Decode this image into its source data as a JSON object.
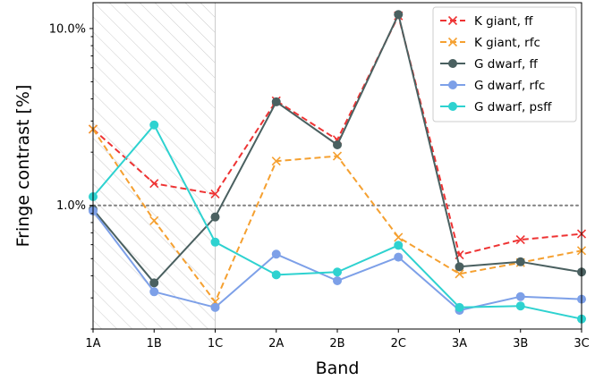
{
  "chart_data": {
    "type": "line",
    "xlabel": "Band",
    "ylabel": "Fringe contrast [%]",
    "yscale": "log",
    "ylim": [
      0.2,
      14
    ],
    "categories": [
      "1A",
      "1B",
      "1C",
      "2A",
      "2B",
      "2C",
      "3A",
      "3B",
      "3C"
    ],
    "yticks": [
      {
        "value": 1.0,
        "label": "1.0%"
      },
      {
        "value": 10.0,
        "label": "10.0%"
      }
    ],
    "reference_line": {
      "value": 1.0,
      "color": "#808080",
      "style": "dotted"
    },
    "shaded_region": {
      "from": "1A",
      "to": "1C",
      "pattern": "hatched"
    },
    "legend": {
      "position": "top-right"
    },
    "series": [
      {
        "name": "K giant, ff",
        "color": "#ee3333",
        "dashed": true,
        "marker": "x",
        "values": [
          2.7,
          1.33,
          1.16,
          3.9,
          2.35,
          11.8,
          0.525,
          0.64,
          0.69
        ]
      },
      {
        "name": "K giant, rfc",
        "color": "#f5a030",
        "dashed": true,
        "marker": "x",
        "values": [
          2.7,
          0.82,
          0.285,
          1.78,
          1.9,
          0.66,
          0.41,
          0.475,
          0.555
        ]
      },
      {
        "name": "G dwarf, ff",
        "color": "#4a6060",
        "dashed": false,
        "marker": "o",
        "values": [
          0.95,
          0.365,
          0.86,
          3.85,
          2.2,
          12.0,
          0.45,
          0.48,
          0.42
        ]
      },
      {
        "name": "G dwarf, rfc",
        "color": "#7da0e8",
        "dashed": false,
        "marker": "o",
        "values": [
          0.93,
          0.325,
          0.265,
          0.53,
          0.375,
          0.51,
          0.255,
          0.305,
          0.295
        ]
      },
      {
        "name": "G dwarf, psff",
        "color": "#2ed2d0",
        "dashed": false,
        "marker": "o",
        "values": [
          1.12,
          2.85,
          0.62,
          0.405,
          0.42,
          0.595,
          0.265,
          0.27,
          0.228
        ]
      }
    ]
  }
}
